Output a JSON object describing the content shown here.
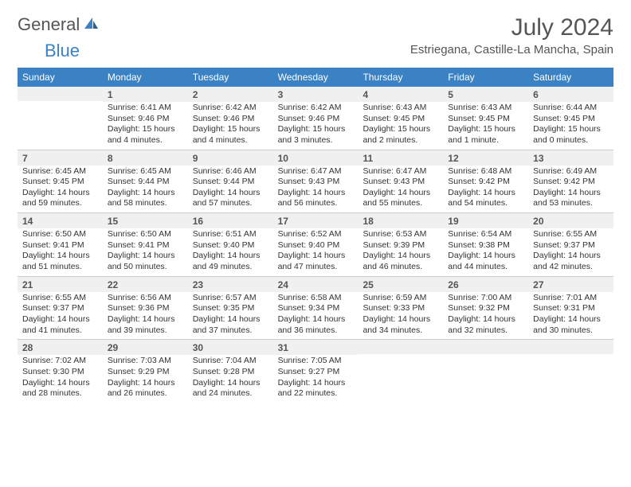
{
  "logo": {
    "text_gray": "General",
    "text_blue": "Blue"
  },
  "title": "July 2024",
  "location": "Estriegana, Castille-La Mancha, Spain",
  "colors": {
    "header_bg": "#3b82c4",
    "daynum_bg": "#f0f0f0",
    "text": "#333333",
    "title_text": "#555555"
  },
  "day_names": [
    "Sunday",
    "Monday",
    "Tuesday",
    "Wednesday",
    "Thursday",
    "Friday",
    "Saturday"
  ],
  "weeks": [
    [
      {
        "blank": true
      },
      {
        "n": "1",
        "sr": "Sunrise: 6:41 AM",
        "ss": "Sunset: 9:46 PM",
        "dl": "Daylight: 15 hours and 4 minutes."
      },
      {
        "n": "2",
        "sr": "Sunrise: 6:42 AM",
        "ss": "Sunset: 9:46 PM",
        "dl": "Daylight: 15 hours and 4 minutes."
      },
      {
        "n": "3",
        "sr": "Sunrise: 6:42 AM",
        "ss": "Sunset: 9:46 PM",
        "dl": "Daylight: 15 hours and 3 minutes."
      },
      {
        "n": "4",
        "sr": "Sunrise: 6:43 AM",
        "ss": "Sunset: 9:45 PM",
        "dl": "Daylight: 15 hours and 2 minutes."
      },
      {
        "n": "5",
        "sr": "Sunrise: 6:43 AM",
        "ss": "Sunset: 9:45 PM",
        "dl": "Daylight: 15 hours and 1 minute."
      },
      {
        "n": "6",
        "sr": "Sunrise: 6:44 AM",
        "ss": "Sunset: 9:45 PM",
        "dl": "Daylight: 15 hours and 0 minutes."
      }
    ],
    [
      {
        "n": "7",
        "sr": "Sunrise: 6:45 AM",
        "ss": "Sunset: 9:45 PM",
        "dl": "Daylight: 14 hours and 59 minutes."
      },
      {
        "n": "8",
        "sr": "Sunrise: 6:45 AM",
        "ss": "Sunset: 9:44 PM",
        "dl": "Daylight: 14 hours and 58 minutes."
      },
      {
        "n": "9",
        "sr": "Sunrise: 6:46 AM",
        "ss": "Sunset: 9:44 PM",
        "dl": "Daylight: 14 hours and 57 minutes."
      },
      {
        "n": "10",
        "sr": "Sunrise: 6:47 AM",
        "ss": "Sunset: 9:43 PM",
        "dl": "Daylight: 14 hours and 56 minutes."
      },
      {
        "n": "11",
        "sr": "Sunrise: 6:47 AM",
        "ss": "Sunset: 9:43 PM",
        "dl": "Daylight: 14 hours and 55 minutes."
      },
      {
        "n": "12",
        "sr": "Sunrise: 6:48 AM",
        "ss": "Sunset: 9:42 PM",
        "dl": "Daylight: 14 hours and 54 minutes."
      },
      {
        "n": "13",
        "sr": "Sunrise: 6:49 AM",
        "ss": "Sunset: 9:42 PM",
        "dl": "Daylight: 14 hours and 53 minutes."
      }
    ],
    [
      {
        "n": "14",
        "sr": "Sunrise: 6:50 AM",
        "ss": "Sunset: 9:41 PM",
        "dl": "Daylight: 14 hours and 51 minutes."
      },
      {
        "n": "15",
        "sr": "Sunrise: 6:50 AM",
        "ss": "Sunset: 9:41 PM",
        "dl": "Daylight: 14 hours and 50 minutes."
      },
      {
        "n": "16",
        "sr": "Sunrise: 6:51 AM",
        "ss": "Sunset: 9:40 PM",
        "dl": "Daylight: 14 hours and 49 minutes."
      },
      {
        "n": "17",
        "sr": "Sunrise: 6:52 AM",
        "ss": "Sunset: 9:40 PM",
        "dl": "Daylight: 14 hours and 47 minutes."
      },
      {
        "n": "18",
        "sr": "Sunrise: 6:53 AM",
        "ss": "Sunset: 9:39 PM",
        "dl": "Daylight: 14 hours and 46 minutes."
      },
      {
        "n": "19",
        "sr": "Sunrise: 6:54 AM",
        "ss": "Sunset: 9:38 PM",
        "dl": "Daylight: 14 hours and 44 minutes."
      },
      {
        "n": "20",
        "sr": "Sunrise: 6:55 AM",
        "ss": "Sunset: 9:37 PM",
        "dl": "Daylight: 14 hours and 42 minutes."
      }
    ],
    [
      {
        "n": "21",
        "sr": "Sunrise: 6:55 AM",
        "ss": "Sunset: 9:37 PM",
        "dl": "Daylight: 14 hours and 41 minutes."
      },
      {
        "n": "22",
        "sr": "Sunrise: 6:56 AM",
        "ss": "Sunset: 9:36 PM",
        "dl": "Daylight: 14 hours and 39 minutes."
      },
      {
        "n": "23",
        "sr": "Sunrise: 6:57 AM",
        "ss": "Sunset: 9:35 PM",
        "dl": "Daylight: 14 hours and 37 minutes."
      },
      {
        "n": "24",
        "sr": "Sunrise: 6:58 AM",
        "ss": "Sunset: 9:34 PM",
        "dl": "Daylight: 14 hours and 36 minutes."
      },
      {
        "n": "25",
        "sr": "Sunrise: 6:59 AM",
        "ss": "Sunset: 9:33 PM",
        "dl": "Daylight: 14 hours and 34 minutes."
      },
      {
        "n": "26",
        "sr": "Sunrise: 7:00 AM",
        "ss": "Sunset: 9:32 PM",
        "dl": "Daylight: 14 hours and 32 minutes."
      },
      {
        "n": "27",
        "sr": "Sunrise: 7:01 AM",
        "ss": "Sunset: 9:31 PM",
        "dl": "Daylight: 14 hours and 30 minutes."
      }
    ],
    [
      {
        "n": "28",
        "sr": "Sunrise: 7:02 AM",
        "ss": "Sunset: 9:30 PM",
        "dl": "Daylight: 14 hours and 28 minutes."
      },
      {
        "n": "29",
        "sr": "Sunrise: 7:03 AM",
        "ss": "Sunset: 9:29 PM",
        "dl": "Daylight: 14 hours and 26 minutes."
      },
      {
        "n": "30",
        "sr": "Sunrise: 7:04 AM",
        "ss": "Sunset: 9:28 PM",
        "dl": "Daylight: 14 hours and 24 minutes."
      },
      {
        "n": "31",
        "sr": "Sunrise: 7:05 AM",
        "ss": "Sunset: 9:27 PM",
        "dl": "Daylight: 14 hours and 22 minutes."
      },
      {
        "blank": true
      },
      {
        "blank": true
      },
      {
        "blank": true
      }
    ]
  ]
}
